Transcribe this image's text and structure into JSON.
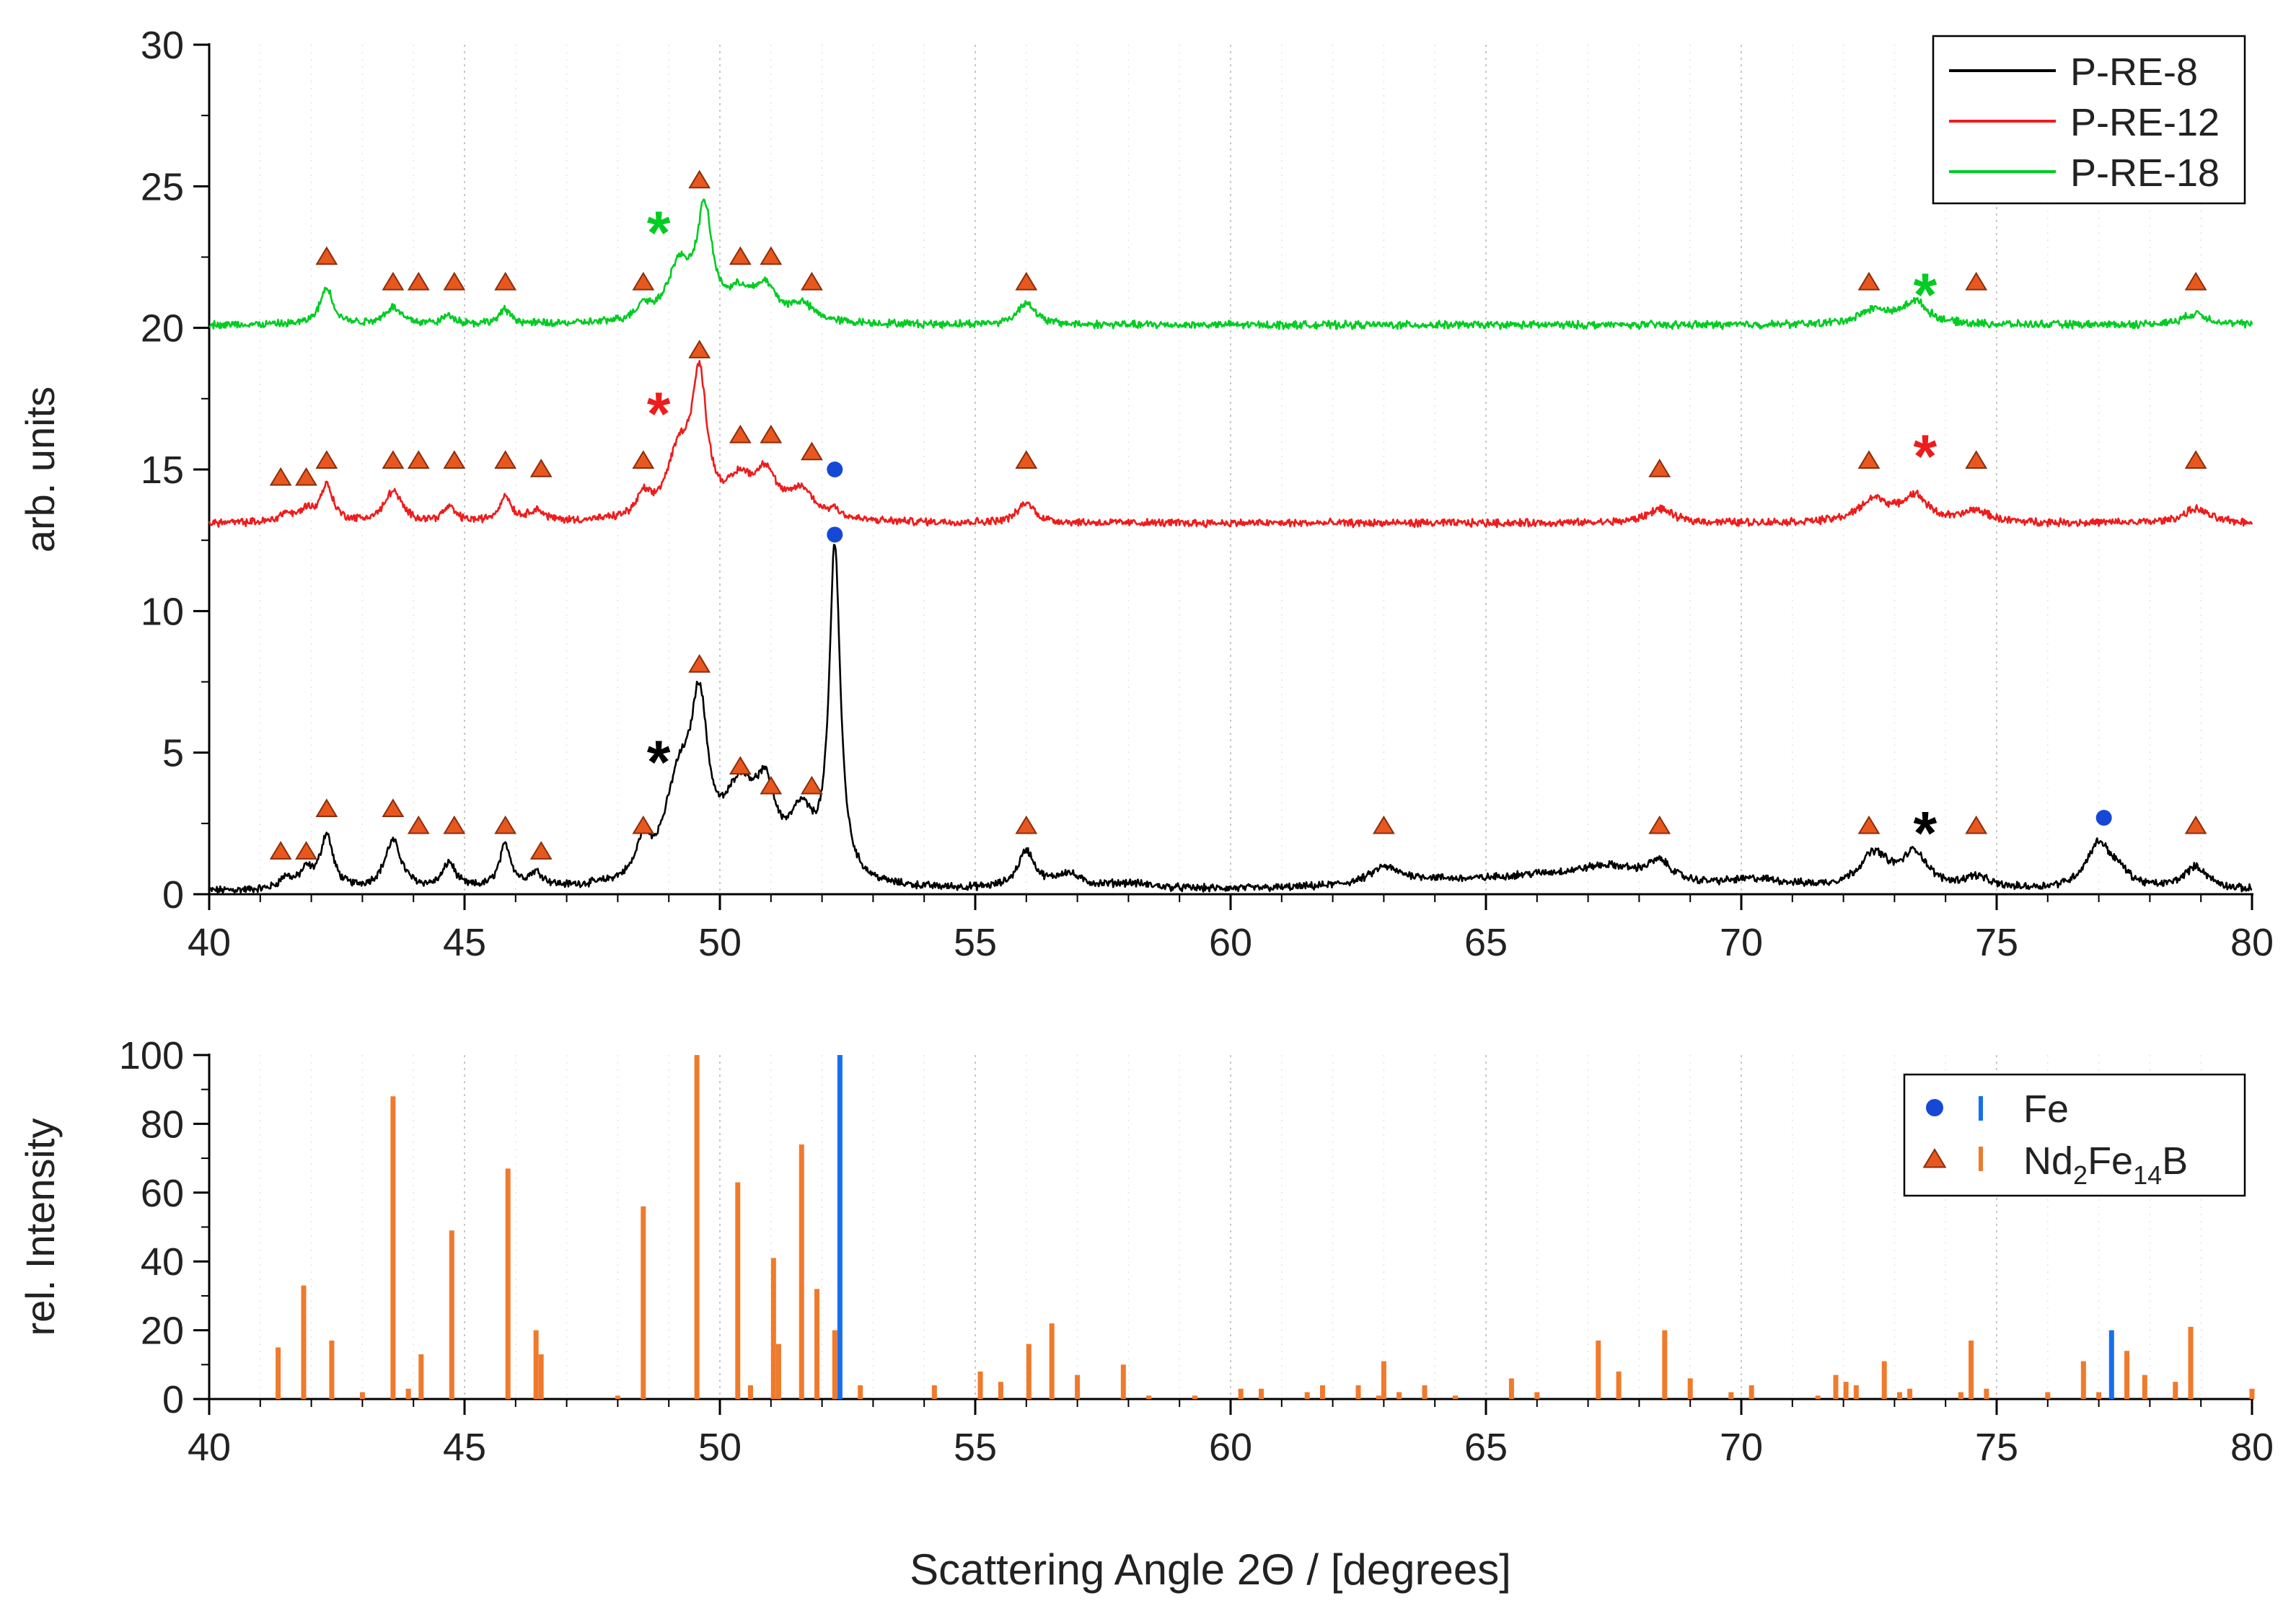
{
  "colors": {
    "black_series": "#000000",
    "red_series": "#ee1c1c",
    "green_series": "#00cc22",
    "triangle": "#e8571e",
    "triangle_edge": "#8a2e0c",
    "fe_marker": "#1648d6",
    "fe_bar": "#1570f0",
    "nd_bar": "#f07a2c",
    "grid": "#c8c8c8"
  },
  "figure": {
    "xlabel": "Scattering Angle 2Θ / [degrees]"
  },
  "chart_data": [
    {
      "type": "line",
      "title": "",
      "xlabel": "Scattering Angle 2Θ / [degrees]",
      "ylabel": "arb. units",
      "xlim": [
        40,
        80
      ],
      "ylim": [
        0,
        30
      ],
      "xticks": [
        40,
        45,
        50,
        55,
        60,
        65,
        70,
        75,
        80
      ],
      "yticks": [
        0,
        5,
        10,
        15,
        20,
        25,
        30
      ],
      "grid": "vertical dotted",
      "legend_position": "top-right",
      "series": [
        {
          "name": "P-RE-8",
          "color_key": "black_series",
          "baseline": 0.1,
          "peaks": [
            [
              41.5,
              0.4,
              0.15
            ],
            [
              41.9,
              0.6,
              0.15
            ],
            [
              42.3,
              1.9,
              0.15
            ],
            [
              43.6,
              1.7,
              0.2
            ],
            [
              44.7,
              0.9,
              0.15
            ],
            [
              45.8,
              1.5,
              0.14
            ],
            [
              46.4,
              0.5,
              0.18
            ],
            [
              48.5,
              1.2,
              0.15
            ],
            [
              49.2,
              3.3,
              0.35
            ],
            [
              49.6,
              5.2,
              0.2
            ],
            [
              50.4,
              3.0,
              0.4
            ],
            [
              50.9,
              2.4,
              0.25
            ],
            [
              51.6,
              2.1,
              0.3
            ],
            [
              52.25,
              11.7,
              0.13
            ],
            [
              56.0,
              1.3,
              0.2
            ],
            [
              56.8,
              0.5,
              0.3
            ],
            [
              58.0,
              0.2,
              0.6
            ],
            [
              63.0,
              0.5,
              0.3
            ],
            [
              63.5,
              0.3,
              1.2
            ],
            [
              66.0,
              0.4,
              1.5
            ],
            [
              67.4,
              0.6,
              0.8
            ],
            [
              68.4,
              0.7,
              0.3
            ],
            [
              70.3,
              0.3,
              0.8
            ],
            [
              72.6,
              1.2,
              0.35
            ],
            [
              73.4,
              1.2,
              0.3
            ],
            [
              74.6,
              0.4,
              0.3
            ],
            [
              77.0,
              1.6,
              0.3
            ],
            [
              77.4,
              0.4,
              0.25
            ],
            [
              78.9,
              0.8,
              0.3
            ]
          ],
          "stars": [
            {
              "x": 48.8,
              "y": 4.9
            },
            {
              "x": 73.6,
              "y": 2.4
            }
          ],
          "triangles": [
            [
              41.4,
              1.5
            ],
            [
              41.9,
              1.5
            ],
            [
              42.3,
              3.0
            ],
            [
              43.6,
              3.0
            ],
            [
              44.1,
              2.4
            ],
            [
              44.8,
              2.4
            ],
            [
              45.8,
              2.4
            ],
            [
              46.5,
              1.5
            ],
            [
              48.5,
              2.4
            ],
            [
              49.6,
              8.1
            ],
            [
              50.4,
              4.5
            ],
            [
              51.0,
              3.8
            ],
            [
              51.8,
              3.8
            ],
            [
              56.0,
              2.4
            ],
            [
              63.0,
              2.4
            ],
            [
              68.4,
              2.4
            ],
            [
              72.5,
              2.4
            ],
            [
              74.6,
              2.4
            ],
            [
              78.9,
              2.4
            ]
          ],
          "fe_markers": [
            [
              52.25,
              12.7
            ],
            [
              77.1,
              2.7
            ]
          ]
        },
        {
          "name": "P-RE-12",
          "color_key": "red_series",
          "baseline": 13.1,
          "peaks": [
            [
              41.5,
              0.3,
              0.15
            ],
            [
              41.9,
              0.4,
              0.15
            ],
            [
              42.3,
              1.3,
              0.15
            ],
            [
              43.6,
              1.1,
              0.2
            ],
            [
              44.7,
              0.5,
              0.15
            ],
            [
              45.8,
              0.9,
              0.14
            ],
            [
              46.4,
              0.4,
              0.18
            ],
            [
              48.5,
              0.7,
              0.15
            ],
            [
              49.2,
              2.2,
              0.3
            ],
            [
              49.6,
              4.6,
              0.18
            ],
            [
              50.4,
              1.2,
              0.3
            ],
            [
              50.9,
              1.5,
              0.25
            ],
            [
              51.6,
              1.0,
              0.3
            ],
            [
              52.25,
              0.3,
              0.13
            ],
            [
              56.0,
              0.7,
              0.2
            ],
            [
              68.4,
              0.5,
              0.3
            ],
            [
              72.6,
              0.8,
              0.35
            ],
            [
              73.4,
              0.9,
              0.3
            ],
            [
              74.6,
              0.4,
              0.3
            ],
            [
              78.9,
              0.5,
              0.3
            ]
          ],
          "stars": [
            {
              "x": 48.8,
              "y": 17.2
            },
            {
              "x": 73.6,
              "y": 15.7
            }
          ],
          "triangles": [
            [
              41.4,
              14.7
            ],
            [
              41.9,
              14.7
            ],
            [
              42.3,
              15.3
            ],
            [
              43.6,
              15.3
            ],
            [
              44.1,
              15.3
            ],
            [
              44.8,
              15.3
            ],
            [
              45.8,
              15.3
            ],
            [
              46.5,
              15.0
            ],
            [
              48.5,
              15.3
            ],
            [
              49.6,
              19.2
            ],
            [
              50.4,
              16.2
            ],
            [
              51.0,
              16.2
            ],
            [
              51.8,
              15.6
            ],
            [
              56.0,
              15.3
            ],
            [
              68.4,
              15.0
            ],
            [
              72.5,
              15.3
            ],
            [
              74.6,
              15.3
            ],
            [
              78.9,
              15.3
            ]
          ],
          "fe_markers": [
            [
              52.25,
              15.0
            ]
          ]
        },
        {
          "name": "P-RE-18",
          "color_key": "green_series",
          "baseline": 20.1,
          "peaks": [
            [
              42.3,
              1.3,
              0.15
            ],
            [
              43.6,
              0.6,
              0.2
            ],
            [
              44.7,
              0.3,
              0.15
            ],
            [
              45.8,
              0.5,
              0.14
            ],
            [
              48.5,
              0.5,
              0.15
            ],
            [
              49.2,
              1.9,
              0.3
            ],
            [
              49.7,
              3.7,
              0.18
            ],
            [
              50.4,
              0.9,
              0.3
            ],
            [
              50.9,
              1.1,
              0.25
            ],
            [
              51.6,
              0.6,
              0.3
            ],
            [
              56.0,
              0.8,
              0.2
            ],
            [
              72.6,
              0.5,
              0.35
            ],
            [
              73.4,
              0.8,
              0.3
            ],
            [
              78.9,
              0.4,
              0.3
            ]
          ],
          "stars": [
            {
              "x": 48.8,
              "y": 23.6
            },
            {
              "x": 73.6,
              "y": 21.4
            }
          ],
          "triangles": [
            [
              42.3,
              22.5
            ],
            [
              43.6,
              21.6
            ],
            [
              44.1,
              21.6
            ],
            [
              44.8,
              21.6
            ],
            [
              45.8,
              21.6
            ],
            [
              48.5,
              21.6
            ],
            [
              49.6,
              25.2
            ],
            [
              50.4,
              22.5
            ],
            [
              51.0,
              22.5
            ],
            [
              51.8,
              21.6
            ],
            [
              56.0,
              21.6
            ],
            [
              72.5,
              21.6
            ],
            [
              74.6,
              21.6
            ],
            [
              78.9,
              21.6
            ]
          ],
          "fe_markers": []
        }
      ],
      "star_symbol": "*"
    },
    {
      "type": "bar",
      "title": "",
      "xlabel": "Scattering Angle 2Θ / [degrees]",
      "ylabel": "rel. Intensity",
      "xlim": [
        40,
        80
      ],
      "ylim": [
        0,
        100
      ],
      "xticks": [
        40,
        45,
        50,
        55,
        60,
        65,
        70,
        75,
        80
      ],
      "yticks": [
        0,
        20,
        40,
        60,
        80,
        100
      ],
      "grid": "vertical dotted",
      "legend_position": "top-right",
      "series": [
        {
          "name": "Fe",
          "color_key": "fe_bar",
          "marker_key": "fe_marker",
          "marker": "circle",
          "values": [
            [
              52.35,
              100
            ],
            [
              77.25,
              20
            ]
          ]
        },
        {
          "name": "Nd2Fe14B",
          "label_main": "Nd",
          "sub1": "2",
          "label_mid": "Fe",
          "sub2": "14",
          "label_end": "B",
          "color_key": "nd_bar",
          "marker_key": "triangle",
          "marker": "triangle",
          "values": [
            [
              41.35,
              15
            ],
            [
              41.85,
              33
            ],
            [
              42.4,
              17
            ],
            [
              43.0,
              2
            ],
            [
              43.6,
              88
            ],
            [
              43.9,
              3
            ],
            [
              44.15,
              13
            ],
            [
              44.75,
              49
            ],
            [
              45.85,
              67
            ],
            [
              46.4,
              20
            ],
            [
              46.5,
              13
            ],
            [
              48.0,
              1
            ],
            [
              48.5,
              56
            ],
            [
              49.55,
              100
            ],
            [
              50.35,
              63
            ],
            [
              50.6,
              4
            ],
            [
              51.05,
              41
            ],
            [
              51.15,
              16
            ],
            [
              51.6,
              74
            ],
            [
              51.9,
              32
            ],
            [
              52.25,
              20
            ],
            [
              52.75,
              4
            ],
            [
              54.2,
              4
            ],
            [
              55.1,
              8
            ],
            [
              55.5,
              5
            ],
            [
              56.05,
              16
            ],
            [
              56.5,
              22
            ],
            [
              57.0,
              7
            ],
            [
              57.9,
              10
            ],
            [
              58.4,
              1
            ],
            [
              59.3,
              1
            ],
            [
              60.2,
              3
            ],
            [
              60.6,
              3
            ],
            [
              61.5,
              2
            ],
            [
              61.8,
              4
            ],
            [
              62.5,
              4
            ],
            [
              62.9,
              1
            ],
            [
              63.0,
              11
            ],
            [
              63.3,
              2
            ],
            [
              63.8,
              4
            ],
            [
              64.4,
              1
            ],
            [
              65.5,
              6
            ],
            [
              66.0,
              2
            ],
            [
              67.2,
              17
            ],
            [
              67.6,
              8
            ],
            [
              68.5,
              20
            ],
            [
              69.0,
              6
            ],
            [
              69.8,
              2
            ],
            [
              70.2,
              4
            ],
            [
              71.5,
              1
            ],
            [
              71.85,
              7
            ],
            [
              72.05,
              5
            ],
            [
              72.25,
              4
            ],
            [
              72.8,
              11
            ],
            [
              73.1,
              2
            ],
            [
              73.3,
              3
            ],
            [
              74.3,
              2
            ],
            [
              74.5,
              17
            ],
            [
              74.8,
              3
            ],
            [
              76.0,
              2
            ],
            [
              76.7,
              11
            ],
            [
              77.0,
              2
            ],
            [
              77.55,
              14
            ],
            [
              77.9,
              7
            ],
            [
              78.5,
              5
            ],
            [
              78.8,
              21
            ],
            [
              80.0,
              3
            ]
          ]
        }
      ]
    }
  ]
}
